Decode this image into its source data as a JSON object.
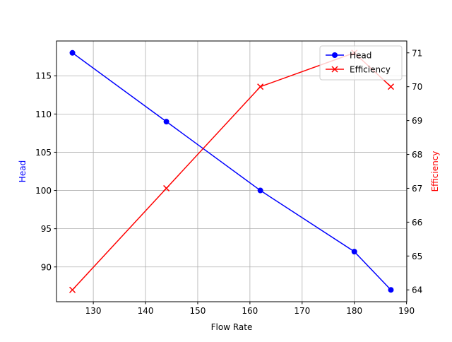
{
  "chart_data": {
    "type": "line",
    "x_label": "Flow Rate",
    "y_label": "Head",
    "y2_label": "Efficiency",
    "x": [
      126,
      144,
      162,
      180,
      187
    ],
    "series": [
      {
        "name": "Head",
        "color": "#0000ff",
        "marker": "circle",
        "values": [
          118,
          109,
          100,
          92,
          87
        ]
      },
      {
        "name": "Efficiency",
        "color": "#ff0000",
        "marker": "x",
        "axis": "y2",
        "values": [
          64,
          67,
          70,
          71,
          70
        ]
      }
    ],
    "xlim": [
      122.95,
      190.05
    ],
    "xticks": [
      130,
      140,
      150,
      160,
      170,
      180,
      190
    ],
    "ylim": [
      85.45,
      119.55
    ],
    "yticks": [
      90,
      95,
      100,
      105,
      110,
      115
    ],
    "y2lim": [
      63.65,
      71.35
    ],
    "y2ticks": [
      64,
      65,
      66,
      67,
      68,
      69,
      70,
      71
    ],
    "grid": true,
    "legend": "upper right"
  }
}
